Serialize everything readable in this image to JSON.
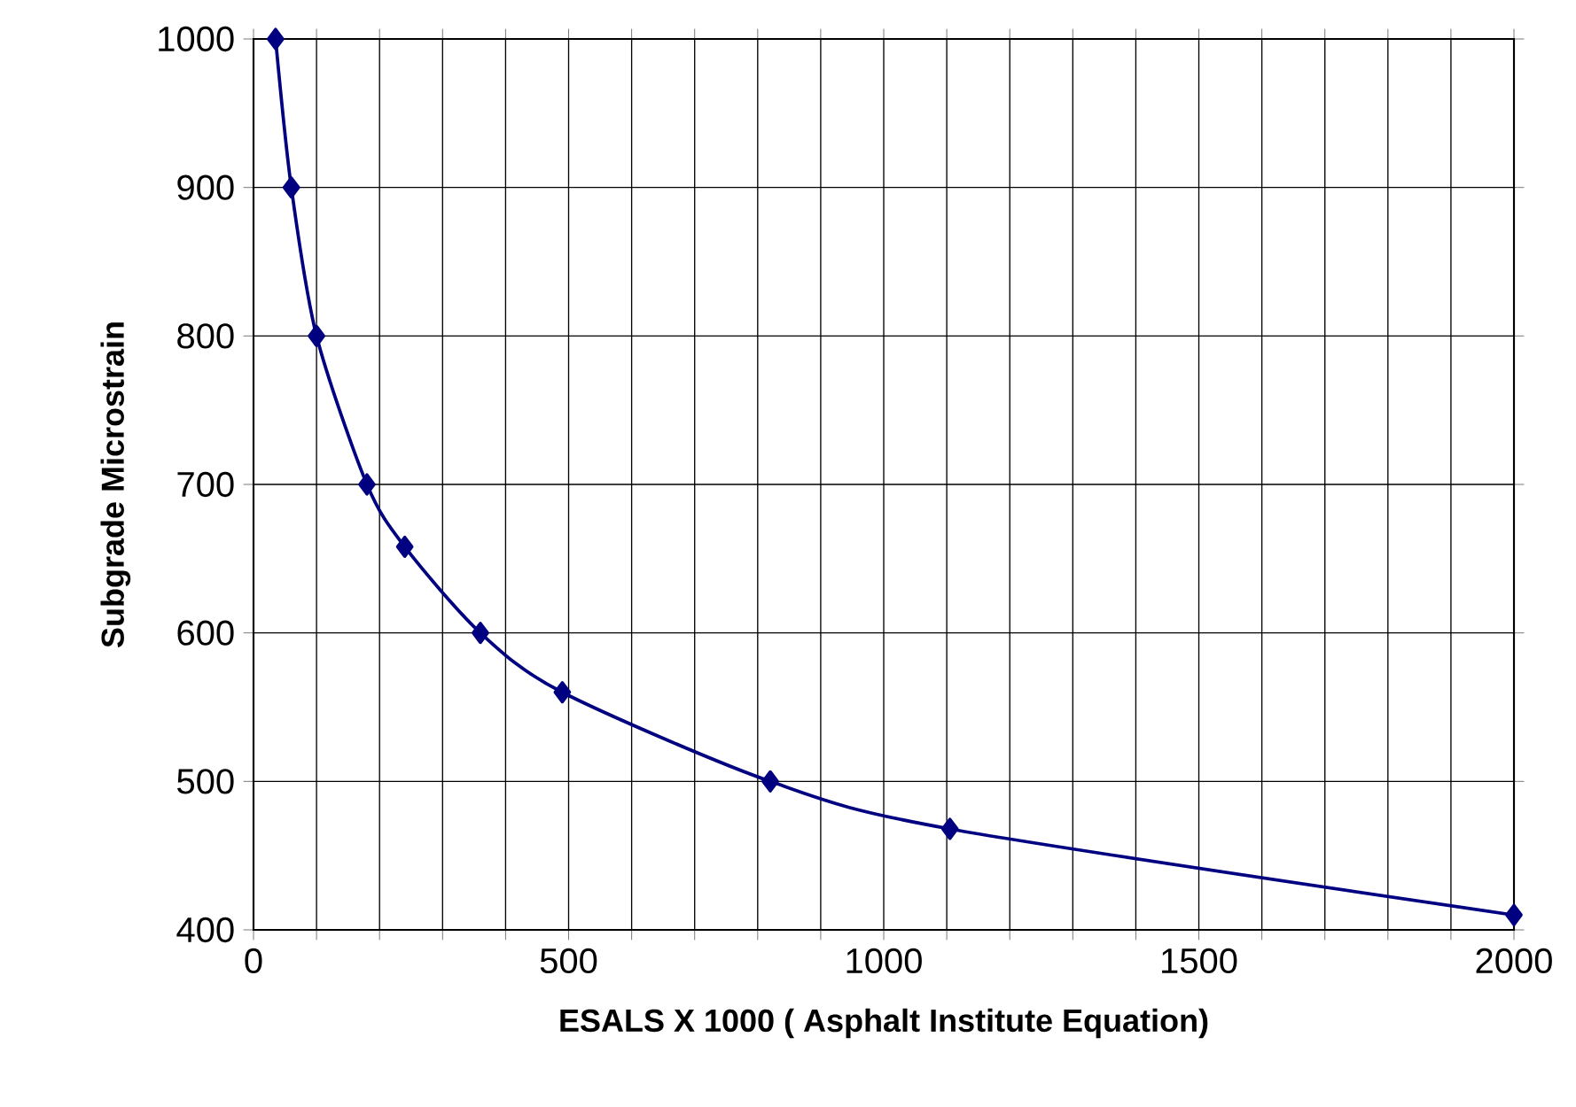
{
  "chart_data": {
    "type": "line",
    "xlabel": "ESALS X 1000 ( Asphalt Institute Equation)",
    "ylabel": "Subgrade Microstrain",
    "series": [
      {
        "color": "#000080",
        "x": [
          35,
          60,
          100,
          180,
          240,
          360,
          490,
          820,
          1105,
          2000
        ],
        "values": [
          1000,
          900,
          800,
          700,
          658,
          600,
          560,
          500,
          468,
          410
        ]
      }
    ],
    "xlim": [
      0,
      2000
    ],
    "ylim": [
      400,
      1000
    ],
    "xticks": [
      0,
      {
        "value": 100,
        "label": null
      },
      {
        "value": 200,
        "label": null
      },
      {
        "value": 300,
        "label": null
      },
      {
        "value": 400,
        "label": null
      },
      500,
      {
        "value": 600,
        "label": null
      },
      {
        "value": 700,
        "label": null
      },
      {
        "value": 800,
        "label": null
      },
      {
        "value": 900,
        "label": null
      },
      1000,
      {
        "value": 1100,
        "label": null
      },
      {
        "value": 1200,
        "label": null
      },
      {
        "value": 1300,
        "label": null
      },
      {
        "value": 1400,
        "label": null
      },
      1500,
      {
        "value": 1600,
        "label": null
      },
      {
        "value": 1700,
        "label": null
      },
      {
        "value": 1800,
        "label": null
      },
      {
        "value": 1900,
        "label": null
      },
      2000
    ],
    "yticks": [
      400,
      500,
      600,
      700,
      800,
      900,
      1000
    ],
    "grid": true,
    "marker": "diamond",
    "line_style": "solid"
  }
}
